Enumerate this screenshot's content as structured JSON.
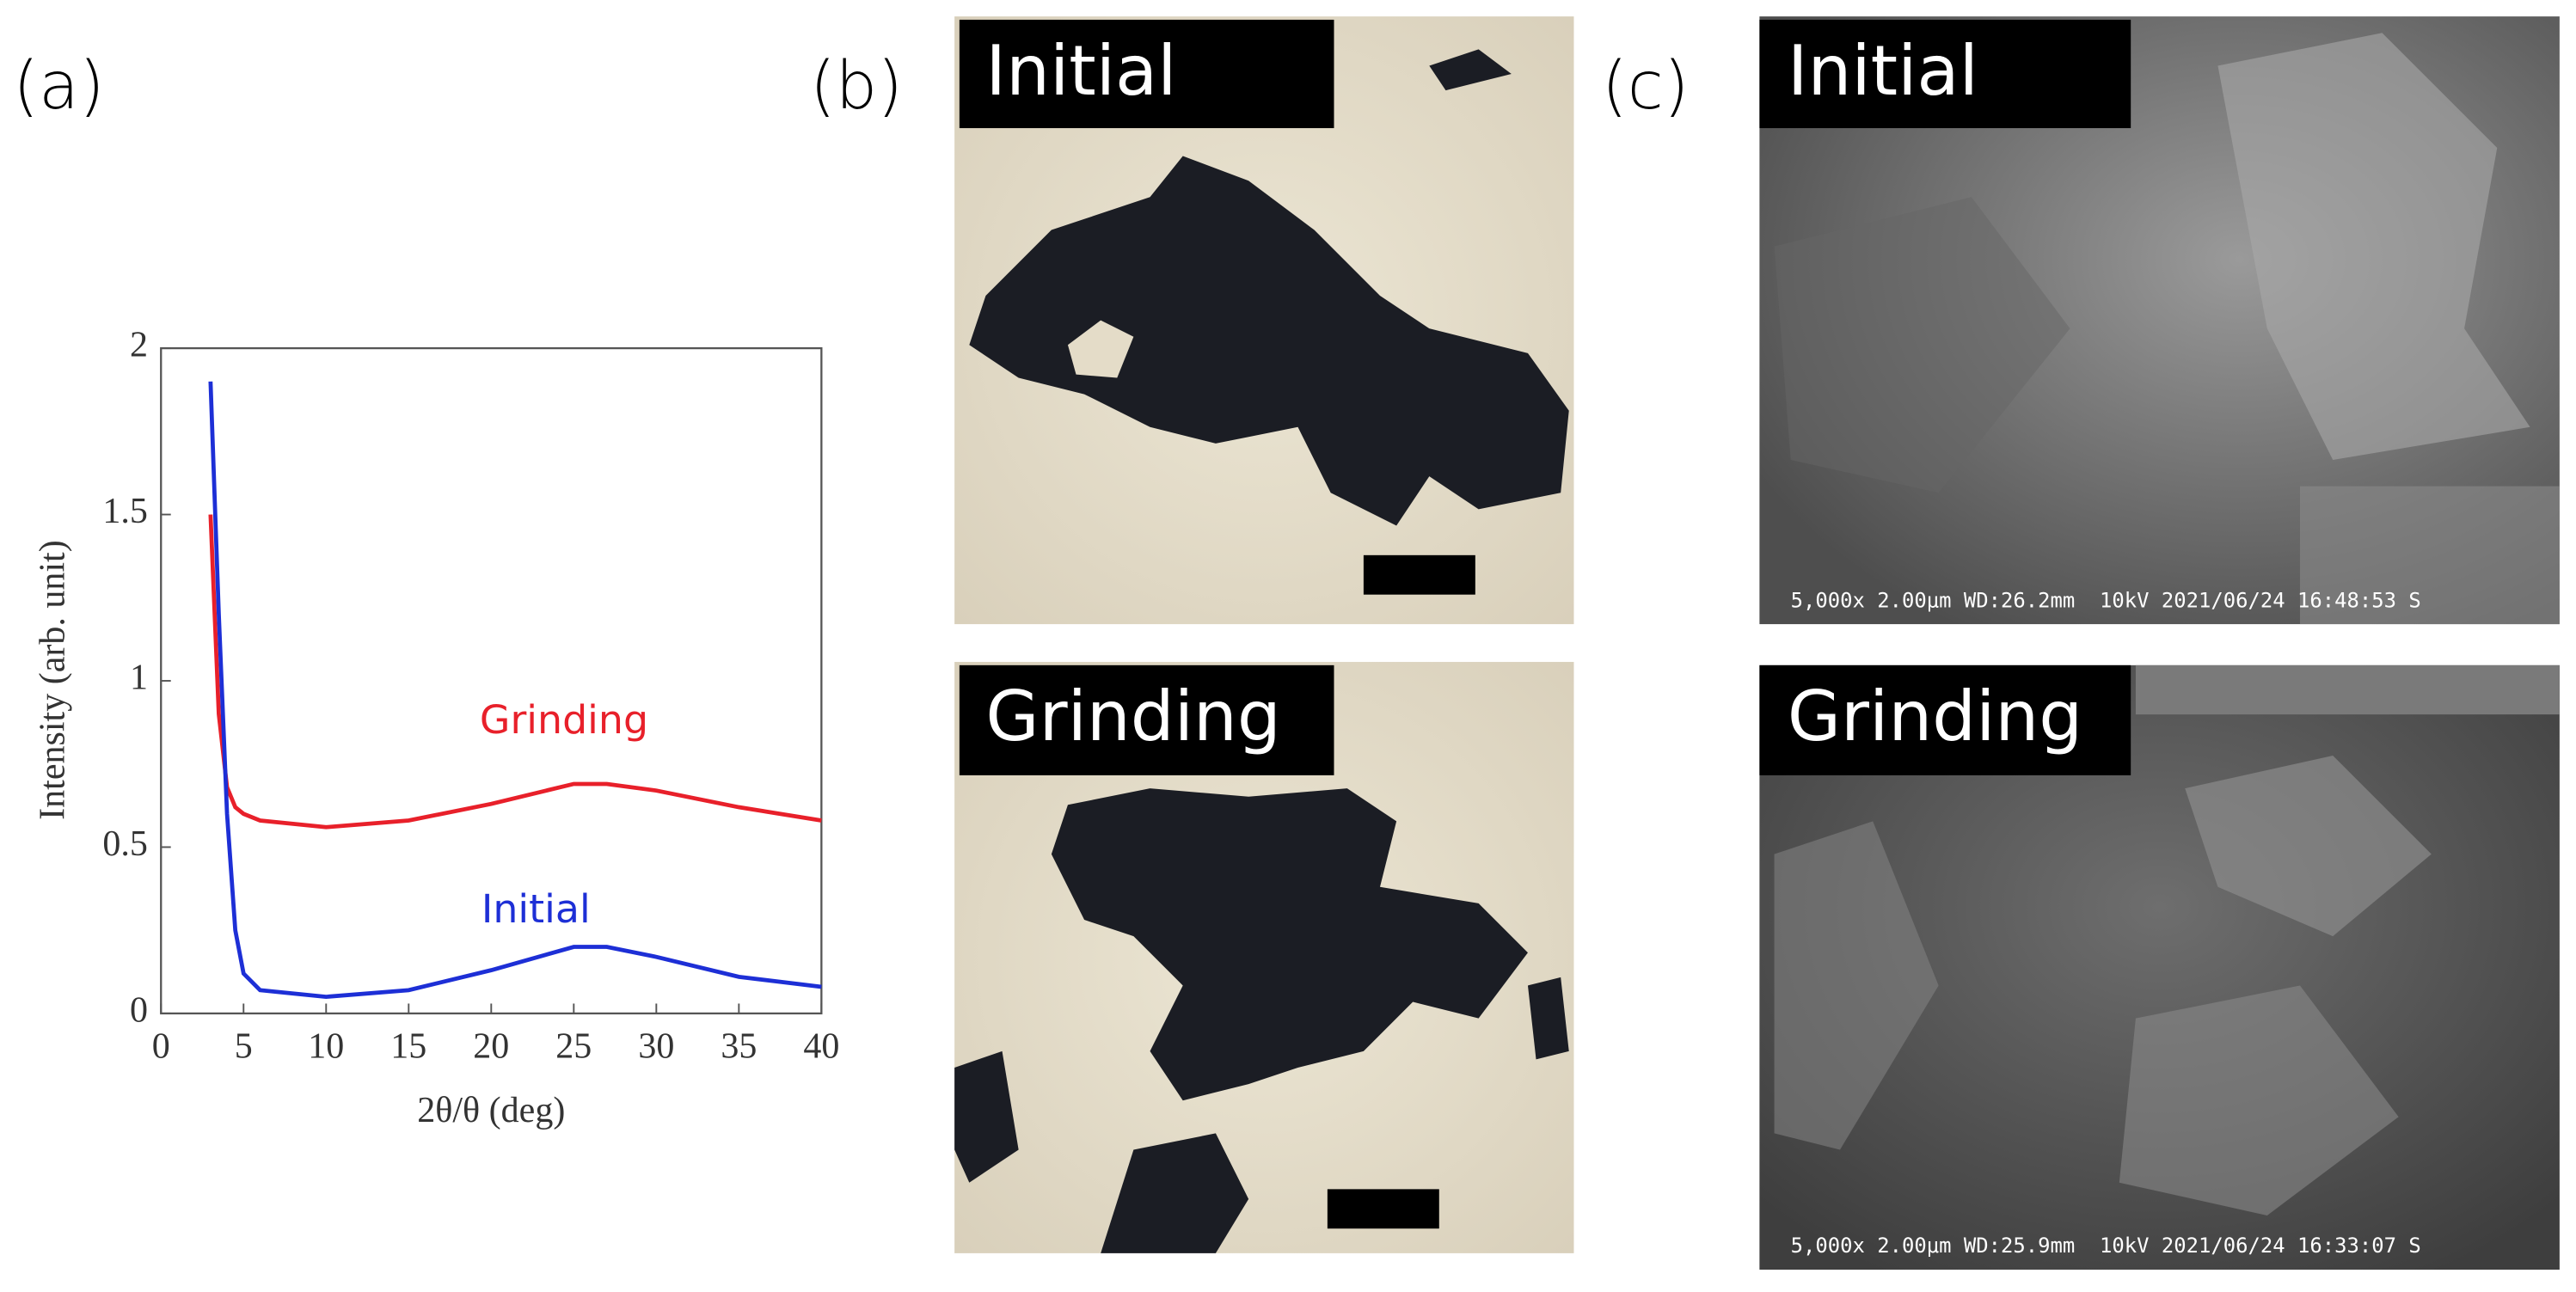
{
  "panel_labels": [
    "(a)",
    "(b)",
    "(c)"
  ],
  "chart_data": {
    "type": "line",
    "x_label": "2θ/θ (deg)",
    "y_label": "Intensity (arb. unit)",
    "x": [
      3,
      3.5,
      4,
      4.5,
      5,
      6,
      8,
      10,
      15,
      20,
      25,
      27,
      30,
      35,
      40
    ],
    "series": [
      {
        "name": "Grinding",
        "color": "#e8202a",
        "values": [
          1.5,
          0.9,
          0.68,
          0.62,
          0.6,
          0.58,
          0.57,
          0.56,
          0.58,
          0.63,
          0.69,
          0.69,
          0.67,
          0.62,
          0.58
        ]
      },
      {
        "name": "Initial",
        "color": "#1d2fd6",
        "values": [
          1.9,
          1.2,
          0.6,
          0.25,
          0.12,
          0.07,
          0.06,
          0.05,
          0.07,
          0.13,
          0.2,
          0.2,
          0.17,
          0.11,
          0.08
        ]
      }
    ],
    "xlim": [
      0,
      40
    ],
    "xticks": [
      0,
      5,
      10,
      15,
      20,
      25,
      30,
      35,
      40
    ],
    "ylim": [
      0,
      2
    ],
    "yticks": [
      0,
      0.5,
      1,
      1.5,
      2
    ]
  },
  "optical": {
    "labels": [
      "Initial",
      "Grinding"
    ]
  },
  "sem": {
    "labels": [
      "Initial",
      "Grinding"
    ],
    "captions": [
      "5,000x 2.00μm WD:26.2mm  10kV 2021/06/24 16:48:53 S",
      "5,000x 2.00μm WD:25.9mm  10kV 2021/06/24 16:33:07 S"
    ]
  }
}
